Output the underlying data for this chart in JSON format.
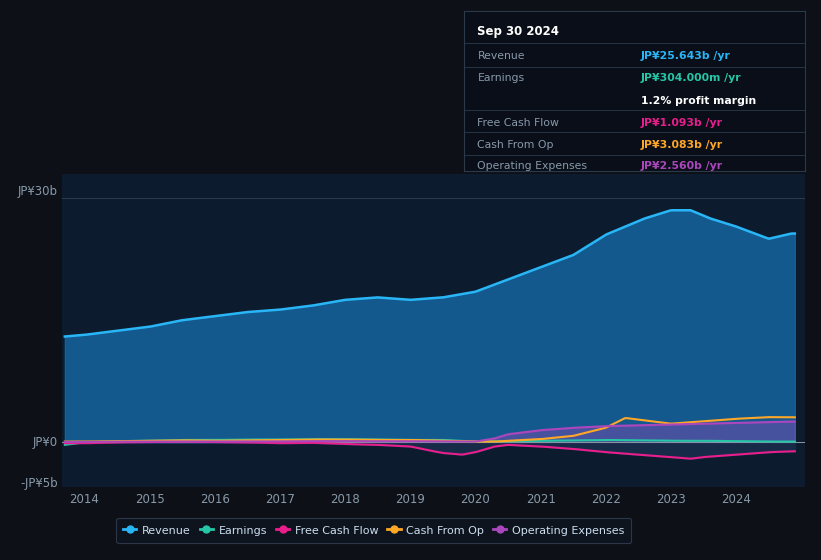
{
  "background_color": "#0d1117",
  "plot_bg_color": "#0d1b2e",
  "ylabel_top": "JP¥30b",
  "ylabel_zero": "JP¥0",
  "ylabel_neg": "-JP¥5b",
  "y_min": -5.5,
  "y_max": 33,
  "xtick_years": [
    2014,
    2015,
    2016,
    2017,
    2018,
    2019,
    2020,
    2021,
    2022,
    2023,
    2024
  ],
  "colors": {
    "revenue": "#29b6f6",
    "revenue_fill": "#1565a0",
    "earnings": "#26c6a6",
    "free_cash_flow": "#e91e8c",
    "cash_from_op": "#ffa726",
    "operating_expenses": "#ab47bc"
  },
  "info_box": {
    "date": "Sep 30 2024",
    "revenue_label": "Revenue",
    "revenue_val": "JP¥25.643b /yr",
    "revenue_color": "#29b6f6",
    "earnings_label": "Earnings",
    "earnings_val": "JP¥304.000m /yr",
    "earnings_color": "#26c6a6",
    "profit_margin": "1.2% profit margin",
    "fcf_label": "Free Cash Flow",
    "fcf_val": "JP¥1.093b /yr",
    "fcf_color": "#e91e8c",
    "cashop_label": "Cash From Op",
    "cashop_val": "JP¥3.083b /yr",
    "cashop_color": "#ffa726",
    "opex_label": "Operating Expenses",
    "opex_val": "JP¥2.560b /yr",
    "opex_color": "#ab47bc"
  },
  "legend_items": [
    {
      "label": "Revenue",
      "color": "#29b6f6"
    },
    {
      "label": "Earnings",
      "color": "#26c6a6"
    },
    {
      "label": "Free Cash Flow",
      "color": "#e91e8c"
    },
    {
      "label": "Cash From Op",
      "color": "#ffa726"
    },
    {
      "label": "Operating Expenses",
      "color": "#ab47bc"
    }
  ]
}
